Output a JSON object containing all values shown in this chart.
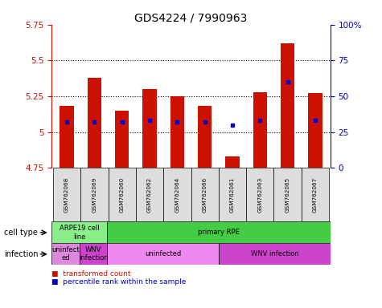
{
  "title": "GDS4224 / 7990963",
  "samples": [
    "GSM762068",
    "GSM762069",
    "GSM762060",
    "GSM762062",
    "GSM762064",
    "GSM762066",
    "GSM762061",
    "GSM762063",
    "GSM762065",
    "GSM762067"
  ],
  "bar_bottoms": [
    4.75,
    4.75,
    4.75,
    4.75,
    4.75,
    4.75,
    4.75,
    4.75,
    4.75,
    4.75
  ],
  "bar_tops": [
    5.18,
    5.38,
    5.15,
    5.3,
    5.25,
    5.18,
    4.83,
    5.28,
    5.62,
    5.27
  ],
  "blue_values": [
    5.07,
    5.07,
    5.07,
    5.08,
    5.07,
    5.07,
    5.05,
    5.08,
    5.35,
    5.08
  ],
  "ylim_left": [
    4.75,
    5.75
  ],
  "ylim_right": [
    0,
    100
  ],
  "yticks_left": [
    4.75,
    5.0,
    5.25,
    5.5,
    5.75
  ],
  "ytick_labels_left": [
    "4.75",
    "5",
    "5.25",
    "5.5",
    "5.75"
  ],
  "yticks_right": [
    0,
    25,
    50,
    75,
    100
  ],
  "ytick_labels_right": [
    "0",
    "25",
    "50",
    "75",
    "100%"
  ],
  "dotted_lines": [
    5.0,
    5.25,
    5.5
  ],
  "bar_color": "#cc1100",
  "blue_color": "#0000cc",
  "cell_type_groups": [
    {
      "label": "ARPE19 cell\nline",
      "start": 0,
      "end": 2,
      "color": "#88ee88"
    },
    {
      "label": "primary RPE",
      "start": 2,
      "end": 10,
      "color": "#44cc44"
    }
  ],
  "infection_groups": [
    {
      "label": "uninfect\ned",
      "start": 0,
      "end": 1,
      "color": "#dd88dd"
    },
    {
      "label": "WNV\ninfection",
      "start": 1,
      "end": 2,
      "color": "#cc44cc"
    },
    {
      "label": "uninfected",
      "start": 2,
      "end": 6,
      "color": "#ee88ee"
    },
    {
      "label": "WNV infection",
      "start": 6,
      "end": 10,
      "color": "#cc44cc"
    }
  ],
  "legend_items": [
    {
      "label": "transformed count",
      "color": "#cc1100"
    },
    {
      "label": "percentile rank within the sample",
      "color": "#0000cc"
    }
  ],
  "cell_type_label": "cell type",
  "infection_label": "infection",
  "bar_color_left_spine": "#cc1100",
  "tick_color_right": "#0000bb",
  "sample_box_color": "#dddddd"
}
